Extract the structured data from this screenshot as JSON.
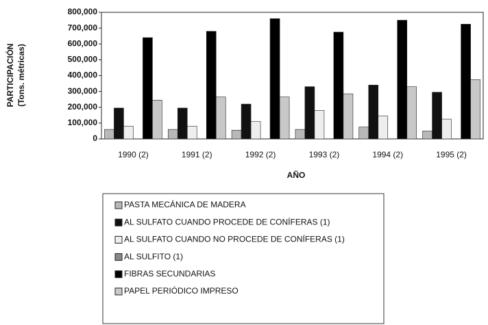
{
  "chart_data": {
    "type": "bar",
    "y_label": [
      "PARTICIPACIÓN",
      "(Tons. métricas)"
    ],
    "x_label": "AÑO",
    "categories": [
      "1990 (2)",
      "1991 (2)",
      "1992 (2)",
      "1993 (2)",
      "1994 (2)",
      "1995 (2)"
    ],
    "series": [
      {
        "name": "PASTA MECÁNICA DE MADERA",
        "color": "#b8b8b8",
        "values": [
          60000,
          60000,
          55000,
          60000,
          75000,
          50000
        ]
      },
      {
        "name": "AL SULFATO CUANDO PROCEDE DE CONÍFERAS (1)",
        "color": "#111111",
        "values": [
          195000,
          195000,
          220000,
          330000,
          340000,
          295000
        ]
      },
      {
        "name": "AL SULFATO CUANDO NO PROCEDE DE CONÍFERAS (1)",
        "color": "#eeeeee",
        "values": [
          80000,
          80000,
          110000,
          180000,
          145000,
          125000
        ]
      },
      {
        "name": "AL SULFITO (1)",
        "color": "#888888",
        "values": [
          0,
          0,
          0,
          0,
          0,
          0
        ]
      },
      {
        "name": "FIBRAS SECUNDARIAS",
        "color": "#000000",
        "values": [
          640000,
          680000,
          760000,
          675000,
          750000,
          725000
        ]
      },
      {
        "name": "PAPEL PERIÓDICO IMPRESO",
        "color": "#c8c8c8",
        "values": [
          245000,
          265000,
          265000,
          285000,
          330000,
          375000
        ]
      }
    ],
    "ylim": [
      0,
      800000
    ],
    "yticks": [
      0,
      {
        "value": 100000,
        "label": "100,000"
      },
      {
        "value": 200000,
        "label": "200,000"
      },
      {
        "value": 300000,
        "label": "300,000"
      },
      {
        "value": 400000,
        "label": "400,000"
      },
      {
        "value": 500000,
        "label": "500,000"
      },
      {
        "value": 600000,
        "label": "600,000"
      },
      {
        "value": 700000,
        "label": "700,000"
      },
      {
        "value": 800000,
        "label": "800,000"
      }
    ]
  }
}
